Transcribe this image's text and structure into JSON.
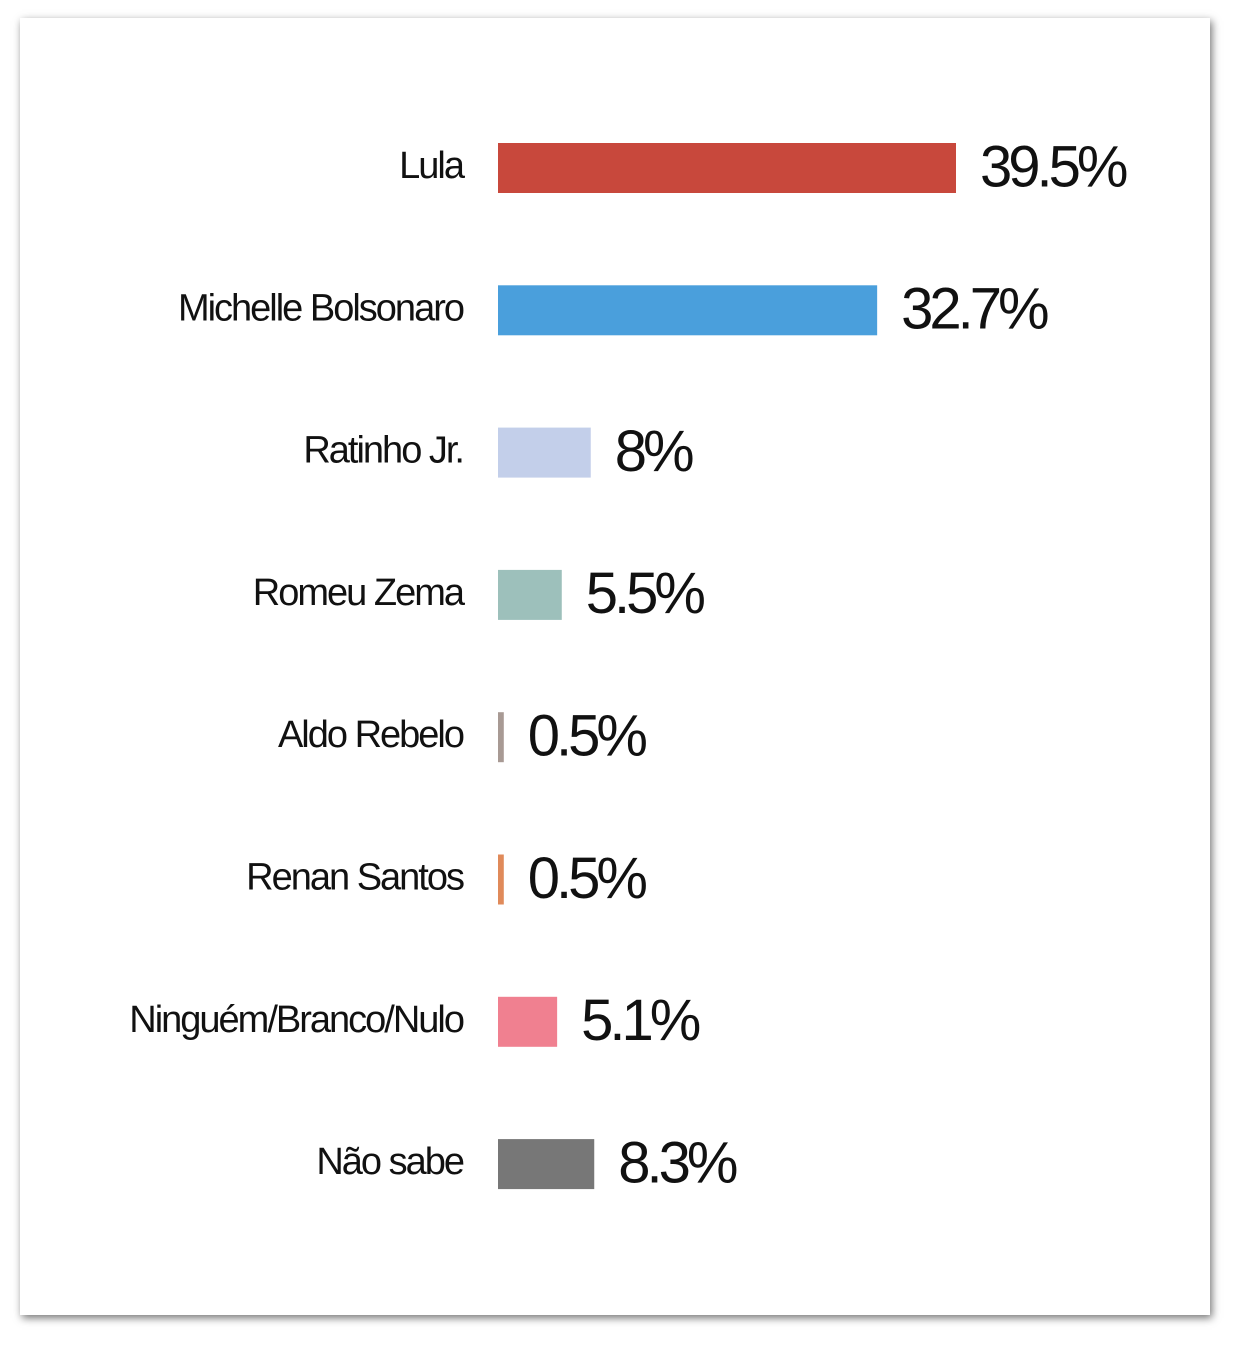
{
  "chart_data": {
    "type": "bar",
    "orientation": "horizontal",
    "categories": [
      "Lula",
      "Michelle  Bolsonaro",
      "Ratinho Jr.",
      "Romeu Zema",
      "Aldo Rebelo",
      "Renan Santos",
      "Ninguém/Branco/Nulo",
      "Não sabe"
    ],
    "values": [
      39.5,
      32.7,
      8,
      5.5,
      0.5,
      0.5,
      5.1,
      8.3
    ],
    "value_labels": [
      "39.5%",
      "32.7%",
      "8%",
      "5.5%",
      "0.5%",
      "0.5%",
      "5.1%",
      "8.3%"
    ],
    "colors": [
      "#c8483c",
      "#4a9fdc",
      "#c3cfea",
      "#9dc0bb",
      "#a89a94",
      "#e08a5a",
      "#f08090",
      "#777777"
    ]
  }
}
